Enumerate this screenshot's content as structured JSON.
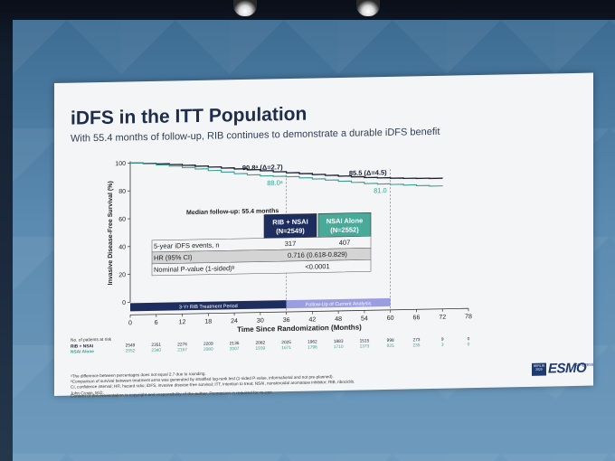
{
  "slide": {
    "title": "iDFS in the ITT Population",
    "subtitle": "With 55.4 months of follow-up, RIB continues to demonstrate a durable iDFS benefit",
    "footnotes": [
      "ᵃThe difference between percentages does not equal 2.7 due to rounding.",
      "ᵇComparison of survival between treatment arms was generated by stratified log-rank test (1-sided P-value, informational and not pre-planned).",
      "CI, confidence interval; HR, hazard ratio; iDFS, invasive disease-free survival; ITT, intention to treat; NSAI, nonsteroidal aromatase inhibitor; RIB, ribociclib.",
      "John Crown, M.D."
    ],
    "copyright": "Content of this presentation is copyright and responsibility of the author. Permission is required for re-use.",
    "logo": {
      "box_lines": [
        "BERLIN",
        "2025"
      ],
      "mark": "ESMO",
      "word": "congress"
    }
  },
  "chart_data": {
    "type": "line",
    "xlabel": "Time Since Randomization (Months)",
    "ylabel": "Invasive Disease-Free Survival (%)",
    "xlim": [
      0,
      78
    ],
    "ylim": [
      0,
      100
    ],
    "x_ticks": [
      0,
      6,
      12,
      18,
      24,
      30,
      36,
      42,
      48,
      54,
      60,
      66,
      72,
      78
    ],
    "y_ticks": [
      0,
      20,
      40,
      60,
      80,
      100
    ],
    "colors": {
      "rib": "#1c2233",
      "nsai": "#3e9e8f",
      "rib_header": "#1d2d5e",
      "nsai_header": "#4aaa99",
      "band_rib": "#1d2d5e",
      "band_fu": "#9a9ee0"
    },
    "series": [
      {
        "name": "RIB + NSAI",
        "color_key": "rib",
        "x": [
          0,
          3,
          6,
          9,
          12,
          15,
          18,
          21,
          24,
          27,
          30,
          33,
          36,
          39,
          42,
          45,
          48,
          51,
          54,
          57,
          60,
          63,
          66,
          69,
          72
        ],
        "y": [
          100,
          99.5,
          99,
          98.3,
          97.6,
          96.8,
          96,
          95.1,
          94.3,
          93.5,
          92.6,
          91.7,
          90.8,
          90,
          89.2,
          88.4,
          87.7,
          87,
          86.3,
          85.9,
          85.5,
          85.2,
          85,
          84.8,
          84.7
        ]
      },
      {
        "name": "NSAI Alone",
        "color_key": "nsai",
        "x": [
          0,
          3,
          6,
          9,
          12,
          15,
          18,
          21,
          24,
          27,
          30,
          33,
          36,
          39,
          42,
          45,
          48,
          51,
          54,
          57,
          60,
          63,
          66,
          69,
          72
        ],
        "y": [
          100,
          99.2,
          98.2,
          97.2,
          96,
          94.8,
          93.5,
          92.2,
          90.9,
          89.8,
          88.9,
          88.4,
          88,
          87,
          86,
          85,
          84,
          83,
          82,
          81.5,
          81,
          80.4,
          79.8,
          79.3,
          79
        ]
      }
    ],
    "annotations": [
      {
        "x": 36,
        "y": 90.8,
        "label": "90.8ᵃ (Δ=2.7)",
        "color_key": "rib"
      },
      {
        "x": 36,
        "y": 88.0,
        "label": "88.0ᵃ",
        "color_key": "nsai"
      },
      {
        "x": 60,
        "y": 85.5,
        "label": "85.5 (Δ=4.5)",
        "color_key": "rib"
      },
      {
        "x": 60,
        "y": 81.0,
        "label": "81.0",
        "color_key": "nsai"
      }
    ],
    "bands": [
      {
        "from": 0,
        "to": 36,
        "label": "3-Yr RIB Treatment Period",
        "color_key": "band_rib"
      },
      {
        "from": 36,
        "to": 60,
        "label": "Follow-Up of Current Analysis",
        "color_key": "band_fu"
      }
    ],
    "inset_table": {
      "caption": "Median follow-up: 55.4 months",
      "headers": [
        {
          "line1": "RIB + NSAI",
          "line2": "(N=2549)",
          "color_key": "rib_header"
        },
        {
          "line1": "NSAI Alone",
          "line2": "(N=2552)",
          "color_key": "nsai_header"
        }
      ],
      "rows": [
        {
          "label": "5-year iDFS events, n",
          "cells": [
            "317",
            "407"
          ]
        },
        {
          "label": "HR (95% CI)",
          "span": "0.716 (0.618-0.829)"
        },
        {
          "label": "Nominal P-value (1-sided)ᵇ",
          "span": "<0.0001"
        }
      ]
    },
    "at_risk": {
      "title": "No. of patients at risk",
      "x": [
        0,
        6,
        12,
        18,
        24,
        30,
        36,
        42,
        48,
        54,
        60,
        66,
        72,
        78
      ],
      "rows": [
        {
          "label": "RIB + NSAI",
          "values": [
            "2549",
            "2351",
            "2276",
            "2209",
            "2136",
            "2082",
            "2025",
            "1962",
            "1883",
            "1515",
            "998",
            "273",
            "9",
            "0"
          ]
        },
        {
          "label": "NSAI Alone",
          "values": [
            "2552",
            "2340",
            "2167",
            "2080",
            "2007",
            "1939",
            "1671",
            "1798",
            "1710",
            "1373",
            "925",
            "235",
            "3",
            "0"
          ]
        }
      ]
    }
  }
}
